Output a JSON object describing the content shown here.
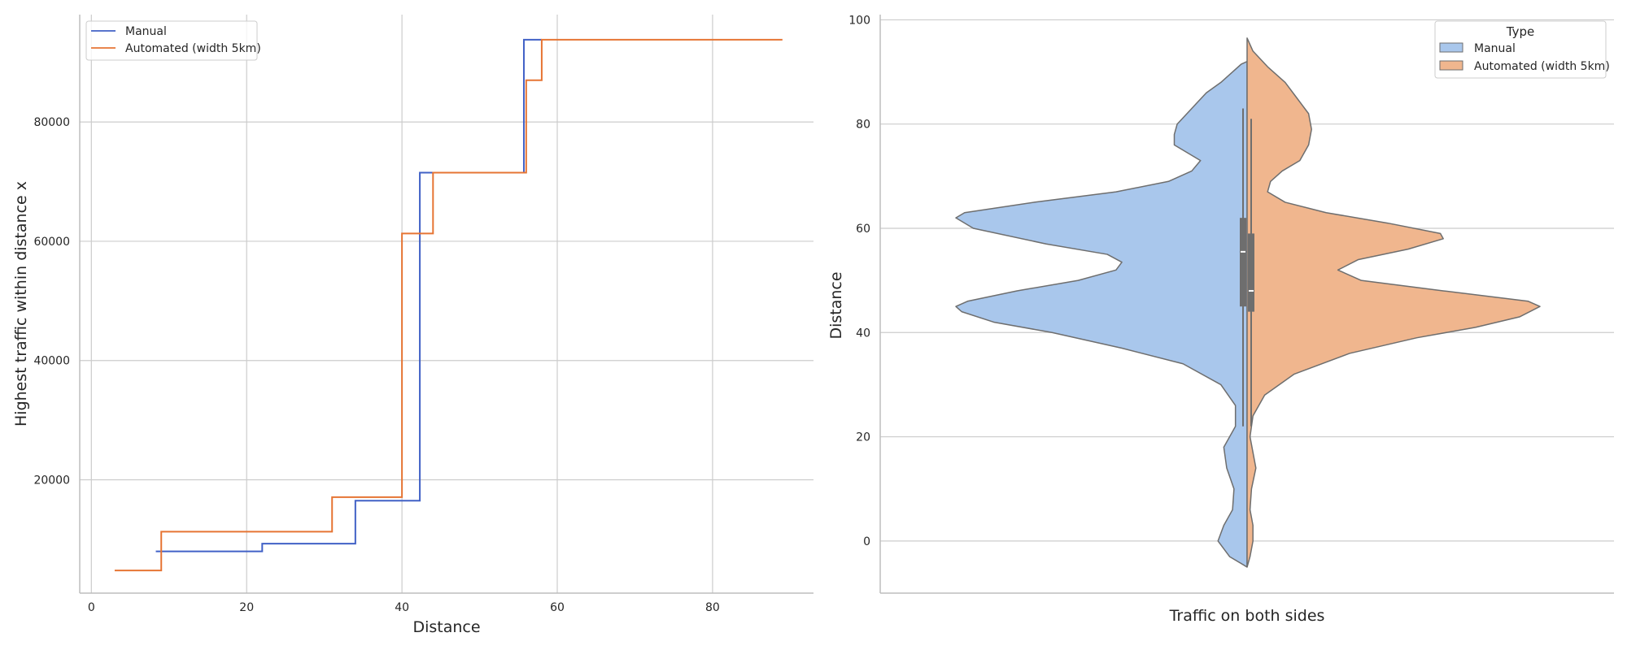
{
  "chart_data": [
    {
      "type": "line",
      "subtype": "step",
      "xlabel": "Distance",
      "ylabel": "Highest traffic within distance x",
      "xlim": [
        -1.5,
        93
      ],
      "ylim": [
        1000,
        98000
      ],
      "xticks": [
        0,
        20,
        40,
        60,
        80
      ],
      "yticks": [
        20000,
        40000,
        60000,
        80000
      ],
      "grid": true,
      "legend_position": "upper left",
      "series": [
        {
          "name": "Manual",
          "color": "#4161c6",
          "x": [
            8.3,
            22,
            34,
            42.3,
            55.7,
            58
          ],
          "y": [
            8000,
            9300,
            16500,
            71500,
            93800,
            93800
          ]
        },
        {
          "name": "Automated (width 5km)",
          "color": "#e67534",
          "x": [
            3,
            9,
            31,
            40,
            44,
            56,
            58,
            89
          ],
          "y": [
            4800,
            11300,
            17100,
            61300,
            71500,
            87000,
            93800,
            93800
          ]
        }
      ]
    },
    {
      "type": "violin",
      "subtype": "split",
      "xlabel": "Traffic on both sides",
      "ylabel": "Distance",
      "ylim": [
        -10,
        101
      ],
      "yticks": [
        0,
        20,
        40,
        60,
        80,
        100
      ],
      "grid": true,
      "legend_title": "Type",
      "legend_position": "upper right",
      "series": [
        {
          "name": "Manual",
          "color": "#a9c7ec",
          "y_range": [
            -5,
            92
          ],
          "quartiles": [
            45,
            55.5,
            62
          ],
          "whiskers": [
            22,
            83
          ],
          "density_profile": [
            [
              -5,
              0.0
            ],
            [
              -3,
              0.06
            ],
            [
              0,
              0.1
            ],
            [
              3,
              0.08
            ],
            [
              6,
              0.05
            ],
            [
              10,
              0.045
            ],
            [
              14,
              0.07
            ],
            [
              18,
              0.08
            ],
            [
              22,
              0.04
            ],
            [
              26,
              0.04
            ],
            [
              30,
              0.09
            ],
            [
              34,
              0.22
            ],
            [
              37,
              0.43
            ],
            [
              40,
              0.67
            ],
            [
              42,
              0.87
            ],
            [
              44,
              0.98
            ],
            [
              45,
              1.0
            ],
            [
              46,
              0.96
            ],
            [
              48,
              0.79
            ],
            [
              50,
              0.58
            ],
            [
              52,
              0.45
            ],
            [
              53.5,
              0.43
            ],
            [
              55,
              0.48
            ],
            [
              57,
              0.69
            ],
            [
              60,
              0.94
            ],
            [
              62,
              1.0
            ],
            [
              63,
              0.97
            ],
            [
              65,
              0.73
            ],
            [
              67,
              0.45
            ],
            [
              69,
              0.27
            ],
            [
              71,
              0.19
            ],
            [
              73,
              0.16
            ],
            [
              76,
              0.25
            ],
            [
              78,
              0.25
            ],
            [
              80,
              0.24
            ],
            [
              83,
              0.19
            ],
            [
              86,
              0.14
            ],
            [
              88,
              0.09
            ],
            [
              90,
              0.05
            ],
            [
              91.5,
              0.02
            ],
            [
              92,
              0.0
            ]
          ]
        },
        {
          "name": "Automated (width 5km)",
          "color": "#f0b68e",
          "y_range": [
            -5,
            96.5
          ],
          "quartiles": [
            44,
            48,
            59
          ],
          "whiskers": [
            22,
            81
          ],
          "density_profile": [
            [
              -5,
              0.0
            ],
            [
              -3,
              0.01
            ],
            [
              0,
              0.02
            ],
            [
              3,
              0.02
            ],
            [
              6,
              0.01
            ],
            [
              10,
              0.015
            ],
            [
              14,
              0.03
            ],
            [
              17,
              0.02
            ],
            [
              20,
              0.01
            ],
            [
              24,
              0.02
            ],
            [
              28,
              0.06
            ],
            [
              32,
              0.16
            ],
            [
              36,
              0.35
            ],
            [
              39,
              0.58
            ],
            [
              41,
              0.78
            ],
            [
              43,
              0.93
            ],
            [
              45,
              1.0
            ],
            [
              46,
              0.96
            ],
            [
              48,
              0.67
            ],
            [
              50,
              0.39
            ],
            [
              52,
              0.31
            ],
            [
              54,
              0.38
            ],
            [
              56,
              0.55
            ],
            [
              58,
              0.67
            ],
            [
              59,
              0.66
            ],
            [
              61,
              0.48
            ],
            [
              63,
              0.27
            ],
            [
              65,
              0.13
            ],
            [
              67,
              0.07
            ],
            [
              69,
              0.08
            ],
            [
              71,
              0.12
            ],
            [
              73,
              0.18
            ],
            [
              76,
              0.21
            ],
            [
              79,
              0.22
            ],
            [
              82,
              0.21
            ],
            [
              85,
              0.17
            ],
            [
              88,
              0.13
            ],
            [
              91,
              0.07
            ],
            [
              94,
              0.02
            ],
            [
              96.5,
              0.0
            ]
          ]
        }
      ]
    }
  ]
}
